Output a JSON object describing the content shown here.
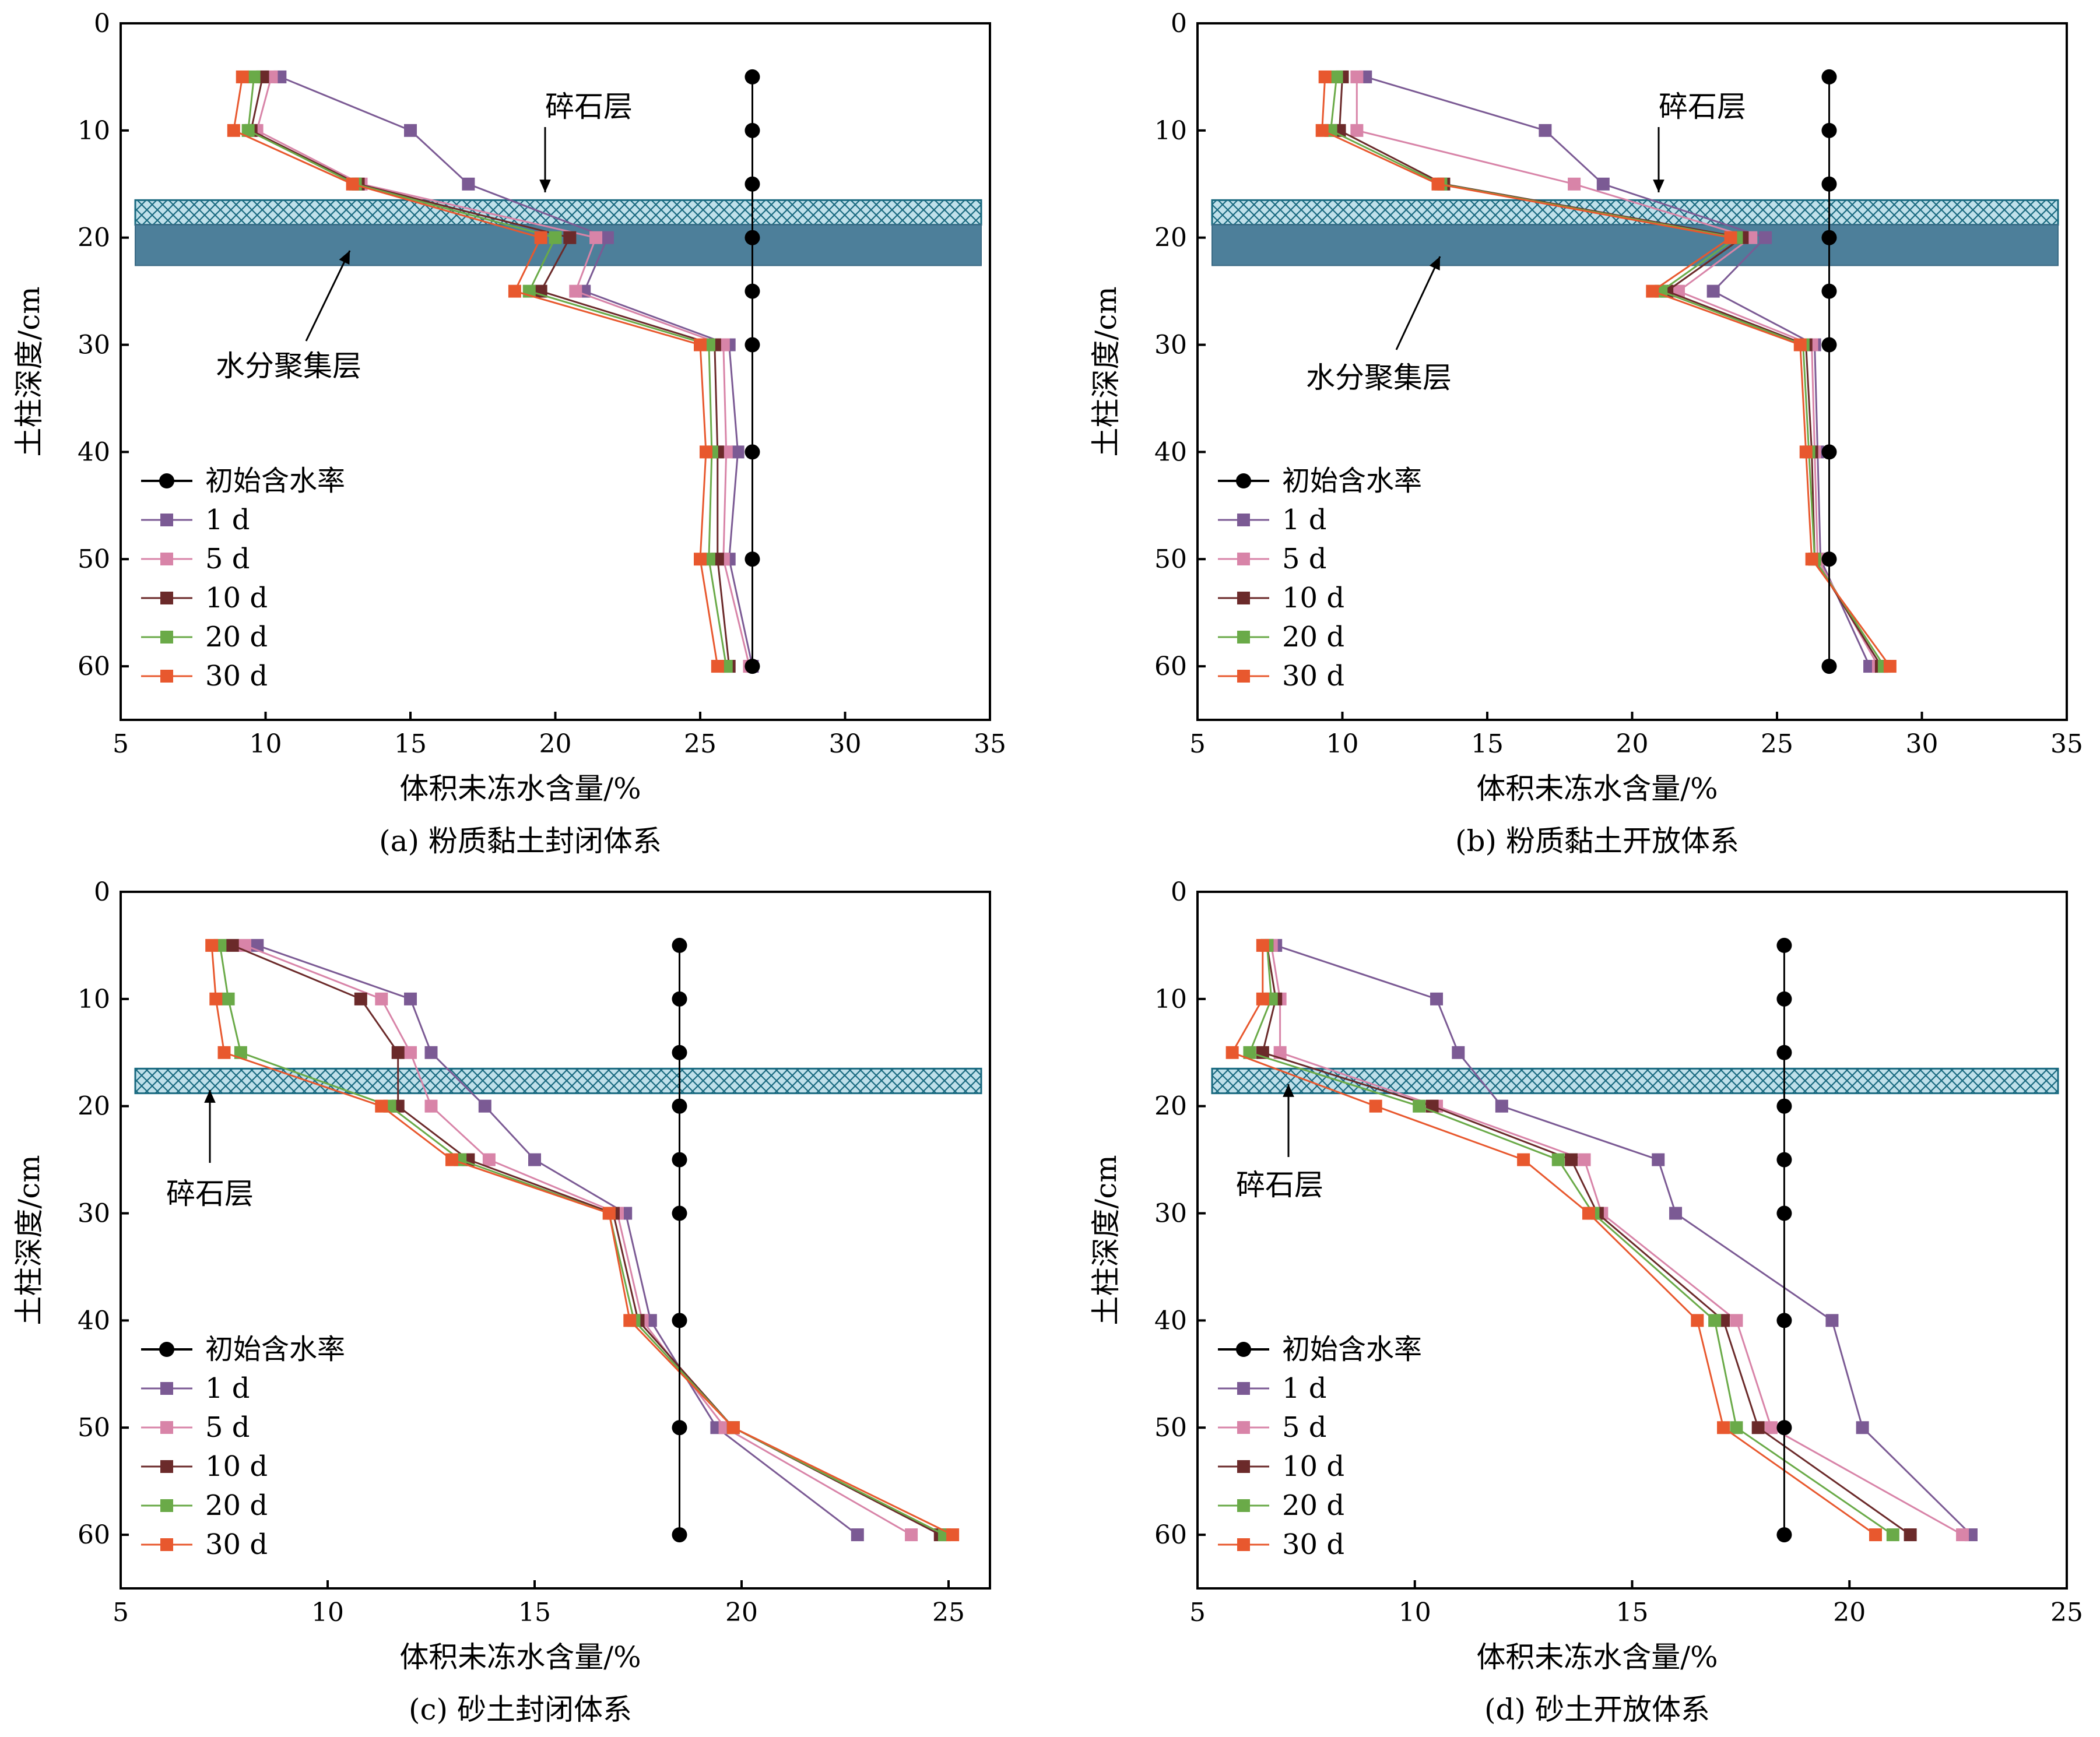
{
  "colors": {
    "initial": "#000000",
    "d1": "#7b5a94",
    "d5": "#d884a8",
    "d10": "#6b2a2a",
    "d20": "#6aaa48",
    "d30": "#e8582e",
    "gravel_fill": "#bfe0ea",
    "gravel_stroke": "#1a6a80",
    "moisture_fill": "#4d7f9a"
  },
  "chart_data": [
    {
      "type": "line",
      "caption": "(a) 粉质黏土封闭体系",
      "xlabel": "体积未冻水含量/%",
      "ylabel": "土柱深度/cm",
      "xlim": [
        5,
        35
      ],
      "xticks": [
        5,
        10,
        15,
        20,
        25,
        30,
        35
      ],
      "ylim": [
        0,
        65
      ],
      "yticks": [
        0,
        10,
        20,
        30,
        40,
        50,
        60
      ],
      "y_inverted": true,
      "legend_position": "bottom-left",
      "annotations": [
        "碎石层",
        "水分聚集层"
      ],
      "gravel_layer_depth": [
        16.5,
        18.8
      ],
      "moisture_layer_depth": [
        18.8,
        22.6
      ],
      "series": [
        {
          "name": "初始含水率",
          "key": "initial",
          "marker": "circle",
          "depth": [
            5,
            10,
            15,
            20,
            25,
            30,
            40,
            50,
            60
          ],
          "values": [
            26.8,
            26.8,
            26.8,
            26.8,
            26.8,
            26.8,
            26.8,
            26.8,
            26.8
          ]
        },
        {
          "name": "1 d",
          "key": "d1",
          "marker": "square",
          "depth": [
            5,
            10,
            15,
            20,
            25,
            30,
            40,
            50,
            60
          ],
          "values": [
            10.5,
            15.0,
            17.0,
            21.8,
            21.0,
            26.0,
            26.3,
            26.0,
            26.8
          ]
        },
        {
          "name": "5 d",
          "key": "d5",
          "marker": "square",
          "depth": [
            5,
            10,
            15,
            20,
            25,
            30,
            40,
            50,
            60
          ],
          "values": [
            10.2,
            9.7,
            13.3,
            21.4,
            20.7,
            25.8,
            25.9,
            25.8,
            26.7
          ]
        },
        {
          "name": "10 d",
          "key": "d10",
          "marker": "square",
          "depth": [
            5,
            10,
            15,
            20,
            25,
            30,
            40,
            50,
            60
          ],
          "values": [
            9.9,
            9.5,
            13.2,
            20.5,
            19.5,
            25.5,
            25.6,
            25.6,
            26.0
          ]
        },
        {
          "name": "20 d",
          "key": "d20",
          "marker": "square",
          "depth": [
            5,
            10,
            15,
            20,
            25,
            30,
            40,
            50,
            60
          ],
          "values": [
            9.6,
            9.4,
            13.1,
            20.0,
            19.1,
            25.3,
            25.4,
            25.3,
            25.9
          ]
        },
        {
          "name": "30 d",
          "key": "d30",
          "marker": "square",
          "depth": [
            5,
            10,
            15,
            20,
            25,
            30,
            40,
            50,
            60
          ],
          "values": [
            9.2,
            8.9,
            13.0,
            19.5,
            18.6,
            25.0,
            25.2,
            25.0,
            25.6
          ]
        }
      ]
    },
    {
      "type": "line",
      "caption": "(b) 粉质黏土开放体系",
      "xlabel": "体积未冻水含量/%",
      "ylabel": "土柱深度/cm",
      "xlim": [
        5,
        35
      ],
      "xticks": [
        5,
        10,
        15,
        20,
        25,
        30,
        35
      ],
      "ylim": [
        0,
        65
      ],
      "yticks": [
        0,
        10,
        20,
        30,
        40,
        50,
        60
      ],
      "y_inverted": true,
      "legend_position": "bottom-left",
      "annotations": [
        "碎石层",
        "水分聚集层"
      ],
      "gravel_layer_depth": [
        16.5,
        18.8
      ],
      "moisture_layer_depth": [
        18.8,
        22.6
      ],
      "series": [
        {
          "name": "初始含水率",
          "key": "initial",
          "marker": "circle",
          "depth": [
            5,
            10,
            15,
            20,
            25,
            30,
            40,
            50,
            60
          ],
          "values": [
            26.8,
            26.8,
            26.8,
            26.8,
            26.8,
            26.8,
            26.8,
            26.8,
            26.8
          ]
        },
        {
          "name": "1 d",
          "key": "d1",
          "marker": "square",
          "depth": [
            5,
            10,
            15,
            20,
            25,
            30,
            40,
            50,
            60
          ],
          "values": [
            10.8,
            17.0,
            19.0,
            24.6,
            22.8,
            26.3,
            26.4,
            26.5,
            28.2
          ]
        },
        {
          "name": "5 d",
          "key": "d5",
          "marker": "square",
          "depth": [
            5,
            10,
            15,
            20,
            25,
            30,
            40,
            50,
            60
          ],
          "values": [
            10.5,
            10.5,
            18.0,
            24.1,
            21.6,
            26.2,
            26.3,
            26.4,
            28.5
          ]
        },
        {
          "name": "10 d",
          "key": "d10",
          "marker": "square",
          "depth": [
            5,
            10,
            15,
            20,
            25,
            30,
            40,
            50,
            60
          ],
          "values": [
            10.0,
            9.9,
            13.5,
            23.8,
            21.2,
            26.0,
            26.2,
            26.3,
            28.6
          ]
        },
        {
          "name": "20 d",
          "key": "d20",
          "marker": "square",
          "depth": [
            5,
            10,
            15,
            20,
            25,
            30,
            40,
            50,
            60
          ],
          "values": [
            9.8,
            9.6,
            13.4,
            23.6,
            21.0,
            25.9,
            26.1,
            26.3,
            28.7
          ]
        },
        {
          "name": "30 d",
          "key": "d30",
          "marker": "square",
          "depth": [
            5,
            10,
            15,
            20,
            25,
            30,
            40,
            50,
            60
          ],
          "values": [
            9.4,
            9.3,
            13.3,
            23.4,
            20.7,
            25.8,
            26.0,
            26.2,
            28.9
          ]
        }
      ]
    },
    {
      "type": "line",
      "caption": "(c) 砂土封闭体系",
      "xlabel": "体积未冻水含量/%",
      "ylabel": "土柱深度/cm",
      "xlim": [
        5,
        26
      ],
      "xticks": [
        5,
        10,
        15,
        20,
        25
      ],
      "ylim": [
        0,
        65
      ],
      "yticks": [
        0,
        10,
        20,
        30,
        40,
        50,
        60
      ],
      "y_inverted": true,
      "legend_position": "bottom-left",
      "annotations": [
        "碎石层"
      ],
      "gravel_layer_depth": [
        16.5,
        18.8
      ],
      "series": [
        {
          "name": "初始含水率",
          "key": "initial",
          "marker": "circle",
          "depth": [
            5,
            10,
            15,
            20,
            25,
            30,
            40,
            50,
            60
          ],
          "values": [
            18.5,
            18.5,
            18.5,
            18.5,
            18.5,
            18.5,
            18.5,
            18.5,
            18.5
          ]
        },
        {
          "name": "1 d",
          "key": "d1",
          "marker": "square",
          "depth": [
            5,
            10,
            15,
            20,
            25,
            30,
            40,
            50,
            60
          ],
          "values": [
            8.3,
            12.0,
            12.5,
            13.8,
            15.0,
            17.2,
            17.8,
            19.4,
            22.8
          ]
        },
        {
          "name": "5 d",
          "key": "d5",
          "marker": "square",
          "depth": [
            5,
            10,
            15,
            20,
            25,
            30,
            40,
            50,
            60
          ],
          "values": [
            8.0,
            11.3,
            12.0,
            12.5,
            13.9,
            17.0,
            17.6,
            19.6,
            24.1
          ]
        },
        {
          "name": "10 d",
          "key": "d10",
          "marker": "square",
          "depth": [
            5,
            10,
            15,
            20,
            25,
            30,
            40,
            50,
            60
          ],
          "values": [
            7.7,
            10.8,
            11.7,
            11.7,
            13.4,
            16.9,
            17.5,
            19.8,
            24.8
          ]
        },
        {
          "name": "20 d",
          "key": "d20",
          "marker": "square",
          "depth": [
            5,
            10,
            15,
            20,
            25,
            30,
            40,
            50,
            60
          ],
          "values": [
            7.4,
            7.6,
            7.9,
            11.5,
            13.2,
            16.8,
            17.4,
            19.8,
            24.9
          ]
        },
        {
          "name": "30 d",
          "key": "d30",
          "marker": "square",
          "depth": [
            5,
            10,
            15,
            20,
            25,
            30,
            40,
            50,
            60
          ],
          "values": [
            7.2,
            7.3,
            7.5,
            11.3,
            13.0,
            16.8,
            17.3,
            19.8,
            25.1
          ]
        }
      ]
    },
    {
      "type": "line",
      "caption": "(d) 砂土开放体系",
      "xlabel": "体积未冻水含量/%",
      "ylabel": "土柱深度/cm",
      "xlim": [
        5,
        25
      ],
      "xticks": [
        5,
        10,
        15,
        20,
        25
      ],
      "ylim": [
        0,
        65
      ],
      "yticks": [
        0,
        10,
        20,
        30,
        40,
        50,
        60
      ],
      "y_inverted": true,
      "legend_position": "bottom-left",
      "annotations": [
        "碎石层"
      ],
      "gravel_layer_depth": [
        16.5,
        18.8
      ],
      "series": [
        {
          "name": "初始含水率",
          "key": "initial",
          "marker": "circle",
          "depth": [
            5,
            10,
            15,
            20,
            25,
            30,
            40,
            50,
            60
          ],
          "values": [
            18.5,
            18.5,
            18.5,
            18.5,
            18.5,
            18.5,
            18.5,
            18.5,
            18.5
          ]
        },
        {
          "name": "1 d",
          "key": "d1",
          "marker": "square",
          "depth": [
            5,
            10,
            15,
            20,
            25,
            30,
            40,
            50,
            60
          ],
          "values": [
            6.8,
            10.5,
            11.0,
            12.0,
            15.6,
            16.0,
            19.6,
            20.3,
            22.8
          ]
        },
        {
          "name": "5 d",
          "key": "d5",
          "marker": "square",
          "depth": [
            5,
            10,
            15,
            20,
            25,
            30,
            40,
            50,
            60
          ],
          "values": [
            6.7,
            6.9,
            6.9,
            10.5,
            13.9,
            14.3,
            17.4,
            18.2,
            22.6
          ]
        },
        {
          "name": "10 d",
          "key": "d10",
          "marker": "square",
          "depth": [
            5,
            10,
            15,
            20,
            25,
            30,
            40,
            50,
            60
          ],
          "values": [
            6.6,
            6.8,
            6.5,
            10.4,
            13.6,
            14.2,
            17.1,
            17.9,
            21.4
          ]
        },
        {
          "name": "20 d",
          "key": "d20",
          "marker": "square",
          "depth": [
            5,
            10,
            15,
            20,
            25,
            30,
            40,
            50,
            60
          ],
          "values": [
            6.6,
            6.7,
            6.2,
            10.1,
            13.3,
            14.1,
            16.9,
            17.4,
            21.0
          ]
        },
        {
          "name": "30 d",
          "key": "d30",
          "marker": "square",
          "depth": [
            5,
            10,
            15,
            20,
            25,
            30,
            40,
            50,
            60
          ],
          "values": [
            6.5,
            6.5,
            5.8,
            9.1,
            12.5,
            14.0,
            16.5,
            17.1,
            20.6
          ]
        }
      ]
    }
  ]
}
